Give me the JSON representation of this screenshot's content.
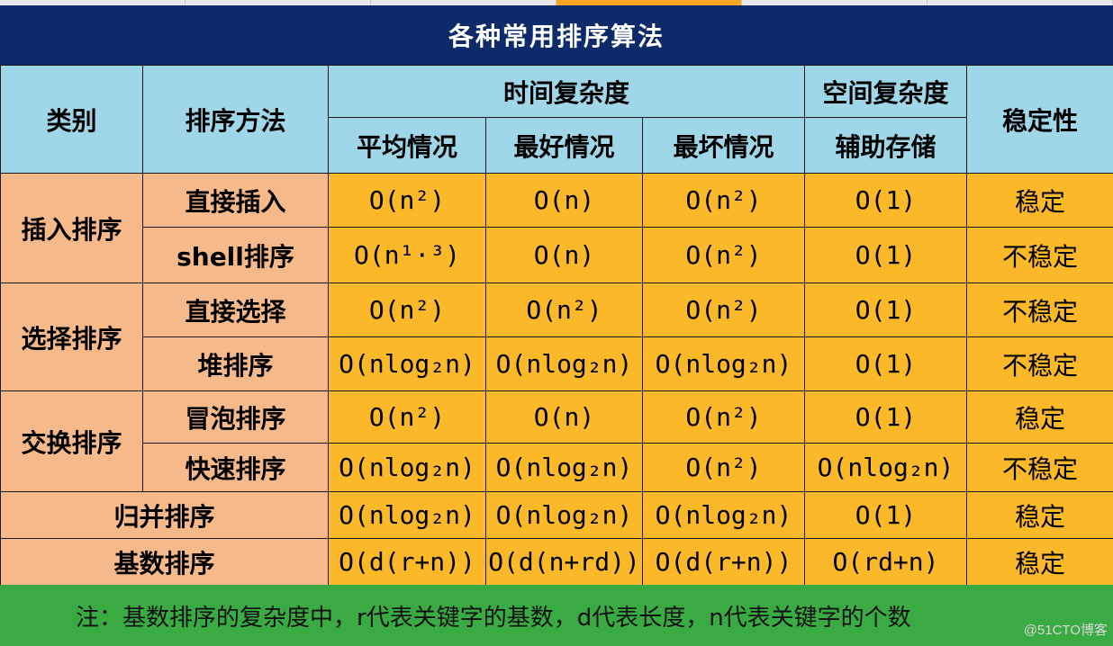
{
  "title": "各种常用排序算法",
  "headers": {
    "category": "类别",
    "method": "排序方法",
    "time_complexity": "时间复杂度",
    "space_complexity": "空间复杂度",
    "stability": "稳定性",
    "average": "平均情况",
    "best": "最好情况",
    "worst": "最坏情况",
    "auxiliary": "辅助存储"
  },
  "groups": {
    "insertion": "插入排序",
    "selection": "选择排序",
    "exchange": "交换排序",
    "merge": "归并排序",
    "radix": "基数排序"
  },
  "rows": [
    {
      "method": "直接插入",
      "avg": "O(n²)",
      "best": "O(n)",
      "worst": "O(n²)",
      "aux": "O(1)",
      "stable": "稳定"
    },
    {
      "method": "shell排序",
      "avg": "O(n¹·³)",
      "best": "O(n)",
      "worst": "O(n²)",
      "aux": "O(1)",
      "stable": "不稳定"
    },
    {
      "method": "直接选择",
      "avg": "O(n²)",
      "best": "O(n²)",
      "worst": "O(n²)",
      "aux": "O(1)",
      "stable": "不稳定"
    },
    {
      "method": "堆排序",
      "avg": "O(nlog₂n)",
      "best": "O(nlog₂n)",
      "worst": "O(nlog₂n)",
      "aux": "O(1)",
      "stable": "不稳定"
    },
    {
      "method": "冒泡排序",
      "avg": "O(n²)",
      "best": "O(n)",
      "worst": "O(n²)",
      "aux": "O(1)",
      "stable": "稳定"
    },
    {
      "method": "快速排序",
      "avg": "O(nlog₂n)",
      "best": "O(nlog₂n)",
      "worst": "O(n²)",
      "aux": "O(nlog₂n)",
      "stable": "不稳定"
    },
    {
      "avg": "O(nlog₂n)",
      "best": "O(nlog₂n)",
      "worst": "O(nlog₂n)",
      "aux": "O(1)",
      "stable": "稳定"
    },
    {
      "avg": "O(d(r+n))",
      "best": "O(d(n+rd))",
      "worst": "O(d(r+n))",
      "aux": "O(rd+n)",
      "stable": "稳定"
    }
  ],
  "note": "注：基数排序的复杂度中，r代表关键字的基数，d代表长度，n代表关键字的个数",
  "watermark": "@51CTO博客",
  "colors": {
    "title_bg": "#0d2a6b",
    "header_bg": "#9fd6e8",
    "category_bg": "#f6b98a",
    "value_bg": "#fbb92a",
    "note_bg": "#3aaa43"
  }
}
